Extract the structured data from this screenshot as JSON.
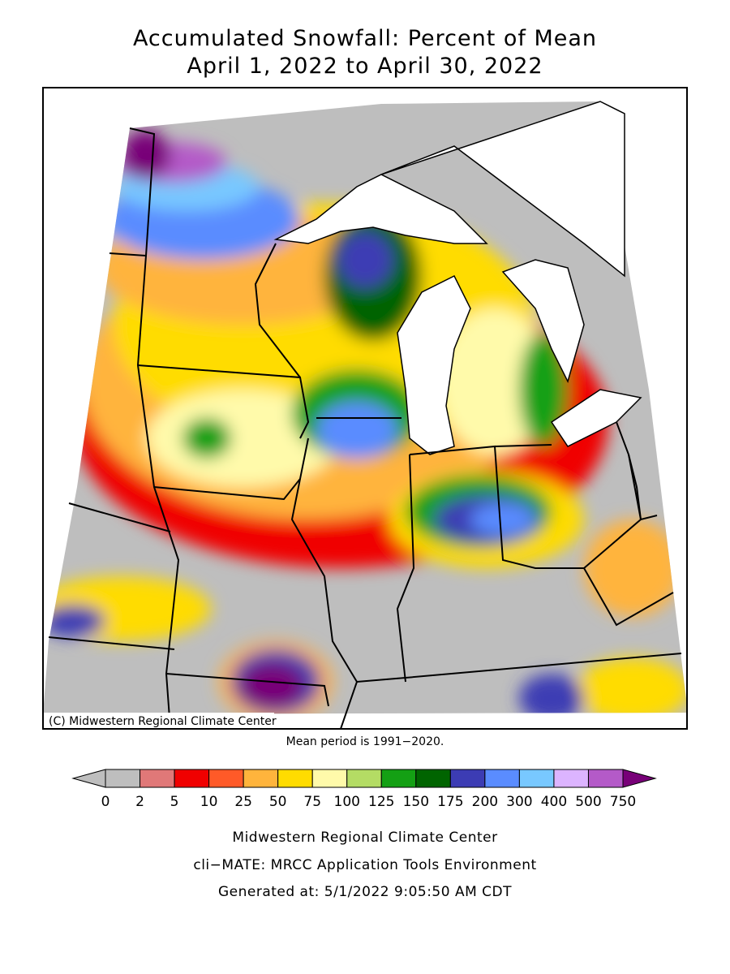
{
  "title": [
    "Accumulated Snowfall: Percent of Mean",
    "April 1, 2022 to April 30, 2022"
  ],
  "map": {
    "credit": "(C) Midwestern Regional Climate Center",
    "note": "Mean period is 1991−2020."
  },
  "legend": {
    "ticks": [
      0,
      2,
      5,
      10,
      25,
      50,
      75,
      100,
      125,
      150,
      175,
      200,
      300,
      400,
      500,
      750
    ],
    "under_color": "#bebebe",
    "colors": [
      "#bebebe",
      "#e07878",
      "#f00000",
      "#ff5a28",
      "#ffb43c",
      "#ffdc00",
      "#fffaaa",
      "#b4dc64",
      "#14a014",
      "#006400",
      "#3c3cb4",
      "#5a8cff",
      "#78c8ff",
      "#dcb4ff",
      "#b45ac8"
    ],
    "over_color": "#780078"
  },
  "footer": [
    "Midwestern Regional Climate Center",
    "cli−MATE: MRCC Application Tools Environment",
    "Generated at: 5/1/2022 9:05:50 AM CDT"
  ]
}
